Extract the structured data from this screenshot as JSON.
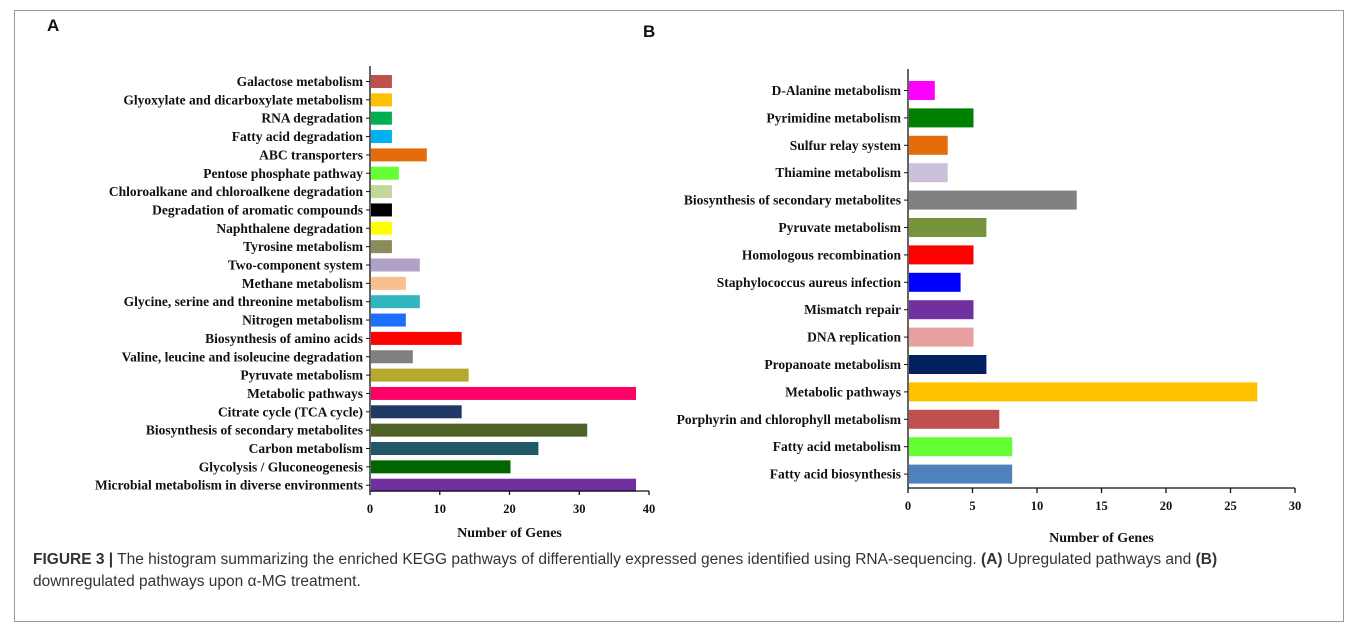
{
  "chart_data": [
    {
      "type": "bar",
      "orientation": "horizontal",
      "panel_label": "A",
      "title": "",
      "xlabel": "Number of Genes",
      "ylabel": "",
      "xlim": [
        0,
        40
      ],
      "xticks": [
        0,
        10,
        20,
        30,
        40
      ],
      "grid": false,
      "categories": [
        "Galactose metabolism",
        "Glyoxylate and dicarboxylate metabolism",
        "RNA degradation",
        "Fatty acid degradation",
        "ABC transporters",
        "Pentose phosphate pathway",
        "Chloroalkane and chloroalkene degradation",
        "Degradation of aromatic compounds",
        "Naphthalene degradation",
        "Tyrosine metabolism",
        "Two-component system",
        "Methane metabolism",
        "Glycine, serine and threonine metabolism",
        "Nitrogen metabolism",
        "Biosynthesis of amino acids",
        "Valine, leucine and isoleucine degradation",
        "Pyruvate metabolism",
        "Metabolic pathways",
        "Citrate cycle (TCA cycle)",
        "Biosynthesis of secondary metabolites",
        "Carbon metabolism",
        "Glycolysis / Gluconeogenesis",
        "Microbial metabolism in diverse environments"
      ],
      "values": [
        3,
        3,
        3,
        3,
        8,
        4,
        3,
        3,
        3,
        3,
        7,
        5,
        7,
        5,
        13,
        6,
        14,
        38,
        13,
        31,
        24,
        20,
        38
      ],
      "colors": [
        "#c0504d",
        "#ffc000",
        "#00b050",
        "#00b0f0",
        "#e46c0a",
        "#66ff33",
        "#c4d79b",
        "#000000",
        "#ffff00",
        "#8c8c5a",
        "#b1a0c7",
        "#fabf8f",
        "#31b6bd",
        "#1f6fff",
        "#ff0000",
        "#808080",
        "#b5a82c",
        "#ff0066",
        "#1f3864",
        "#4f6228",
        "#215868",
        "#006400",
        "#7030a0"
      ]
    },
    {
      "type": "bar",
      "orientation": "horizontal",
      "panel_label": "B",
      "title": "",
      "xlabel": "Number of Genes",
      "ylabel": "",
      "xlim": [
        0,
        30
      ],
      "xticks": [
        0,
        5,
        10,
        15,
        20,
        25,
        30
      ],
      "grid": false,
      "categories": [
        "D-Alanine metabolism",
        "Pyrimidine metabolism",
        "Sulfur relay system",
        "Thiamine metabolism",
        "Biosynthesis of secondary metabolites",
        "Pyruvate metabolism",
        "Homologous recombination",
        "Staphylococcus aureus infection",
        "Mismatch repair",
        "DNA replication",
        "Propanoate metabolism",
        "Metabolic pathways",
        "Porphyrin and chlorophyll metabolism",
        "Fatty acid metabolism",
        "Fatty acid biosynthesis"
      ],
      "values": [
        2,
        5,
        3,
        3,
        13,
        6,
        5,
        4,
        5,
        5,
        6,
        27,
        7,
        8,
        8
      ],
      "colors": [
        "#ff00ff",
        "#008000",
        "#e46c0a",
        "#ccc0da",
        "#808080",
        "#77933c",
        "#ff0000",
        "#0000ff",
        "#7030a0",
        "#e6a0a0",
        "#002060",
        "#ffc000",
        "#c0504d",
        "#66ff33",
        "#4f81bd"
      ]
    }
  ],
  "caption": {
    "lead": "FIGURE 3 |",
    "p1": " The histogram summarizing the enriched KEGG pathways of differentially expressed genes identified using RNA-sequencing. ",
    "label_a": "(A)",
    "p2": " Upregulated pathways and ",
    "label_b": "(B)",
    "p3": " downregulated pathways upon α-MG treatment."
  }
}
